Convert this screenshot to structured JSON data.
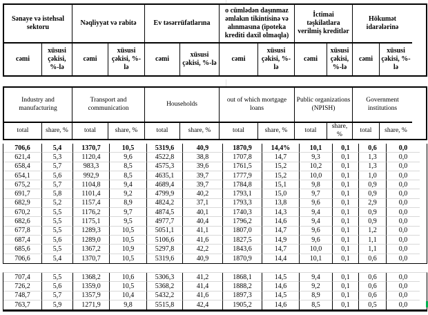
{
  "header_az": {
    "sub": [
      "cəmi",
      "xüsusi çəkisi, %-lə"
    ],
    "groups": [
      "Sənaye və istehsal sektoru",
      "Nəqliyyat və rabitə",
      "Ev təsərrüfatlarına",
      "o cümlədən daşınmaz əmlakın tikintisinə və alınmasına (ipoteka krediti daxil olmaqla)",
      "İctimai təşkilatlara verilmiş kreditlər",
      "Hökumət idarələrinə"
    ]
  },
  "header_en": {
    "sub": [
      "total",
      "share, %"
    ],
    "groups": [
      "Industry and manufacturing",
      "Transport and communication",
      "Households",
      "out of which mortgage loans",
      "Public organizations (NPISH)",
      "Government institutions"
    ]
  },
  "table": {
    "section1": [
      [
        "706,6",
        "5,4",
        "1370,7",
        "10,5",
        "5319,6",
        "40,9",
        "1870,9",
        "14,4%",
        "10,1",
        "0,1",
        "0,6",
        "0,0"
      ],
      [
        "621,4",
        "5,3",
        "1120,4",
        "9,6",
        "4522,8",
        "38,8",
        "1707,8",
        "14,7",
        "9,3",
        "0,1",
        "1,3",
        "0,0"
      ],
      [
        "658,4",
        "5,7",
        "983,3",
        "8,5",
        "4575,3",
        "39,6",
        "1761,5",
        "15,2",
        "10,2",
        "0,1",
        "1,3",
        "0,0"
      ],
      [
        "654,1",
        "5,6",
        "992,9",
        "8,5",
        "4635,1",
        "39,7",
        "1777,9",
        "15,2",
        "10,0",
        "0,1",
        "1,0",
        "0,0"
      ],
      [
        "675,2",
        "5,7",
        "1104,8",
        "9,4",
        "4689,4",
        "39,7",
        "1784,8",
        "15,1",
        "9,8",
        "0,1",
        "0,9",
        "0,0"
      ],
      [
        "691,7",
        "5,8",
        "1101,4",
        "9,2",
        "4799,9",
        "40,2",
        "1793,1",
        "15,0",
        "9,7",
        "0,1",
        "0,9",
        "0,0"
      ],
      [
        "682,9",
        "5,2",
        "1157,4",
        "8,9",
        "4824,2",
        "37,1",
        "1793,3",
        "13,8",
        "9,6",
        "0,1",
        "2,9",
        "0,0"
      ],
      [
        "670,2",
        "5,5",
        "1176,2",
        "9,7",
        "4874,5",
        "40,1",
        "1740,3",
        "14,3",
        "9,4",
        "0,1",
        "0,9",
        "0,0"
      ],
      [
        "682,6",
        "5,5",
        "1175,1",
        "9,5",
        "4977,7",
        "40,4",
        "1796,2",
        "14,6",
        "9,4",
        "0,1",
        "0,9",
        "0,0"
      ],
      [
        "677,8",
        "5,5",
        "1289,3",
        "10,5",
        "5051,1",
        "41,1",
        "1807,0",
        "14,7",
        "9,6",
        "0,1",
        "1,2",
        "0,0"
      ],
      [
        "687,4",
        "5,6",
        "1289,0",
        "10,5",
        "5106,6",
        "41,6",
        "1827,5",
        "14,9",
        "9,6",
        "0,1",
        "1,1",
        "0,0"
      ],
      [
        "685,6",
        "5,5",
        "1367,2",
        "10,9",
        "5297,8",
        "42,2",
        "1843,6",
        "14,7",
        "10,0",
        "0,1",
        "1,1",
        "0,0"
      ],
      [
        "706,6",
        "5,4",
        "1370,7",
        "10,5",
        "5319,6",
        "40,9",
        "1870,9",
        "14,4",
        "10,1",
        "0,1",
        "0,6",
        "0,0"
      ]
    ],
    "section2": [
      [
        "707,4",
        "5,5",
        "1368,2",
        "10,6",
        "5306,3",
        "41,2",
        "1868,1",
        "14,5",
        "9,4",
        "0,1",
        "0,6",
        "0,0"
      ],
      [
        "726,2",
        "5,6",
        "1359,0",
        "10,5",
        "5368,2",
        "41,4",
        "1888,2",
        "14,6",
        "9,2",
        "0,1",
        "0,6",
        "0,0"
      ],
      [
        "748,7",
        "5,7",
        "1357,9",
        "10,4",
        "5432,2",
        "41,6",
        "1897,3",
        "14,5",
        "8,9",
        "0,1",
        "0,6",
        "0,0"
      ],
      [
        "763,7",
        "5,9",
        "1271,9",
        "9,8",
        "5515,8",
        "42,4",
        "1905,2",
        "14,6",
        "8,5",
        "0,1",
        "0,5",
        "0,0"
      ]
    ],
    "first_row_bold": true
  },
  "colors": {
    "border_black": "#000000",
    "row_grid_gray": "#d8d8d8",
    "background_grid_gray": "#e2e2e2",
    "selection_green": "#00B050"
  }
}
